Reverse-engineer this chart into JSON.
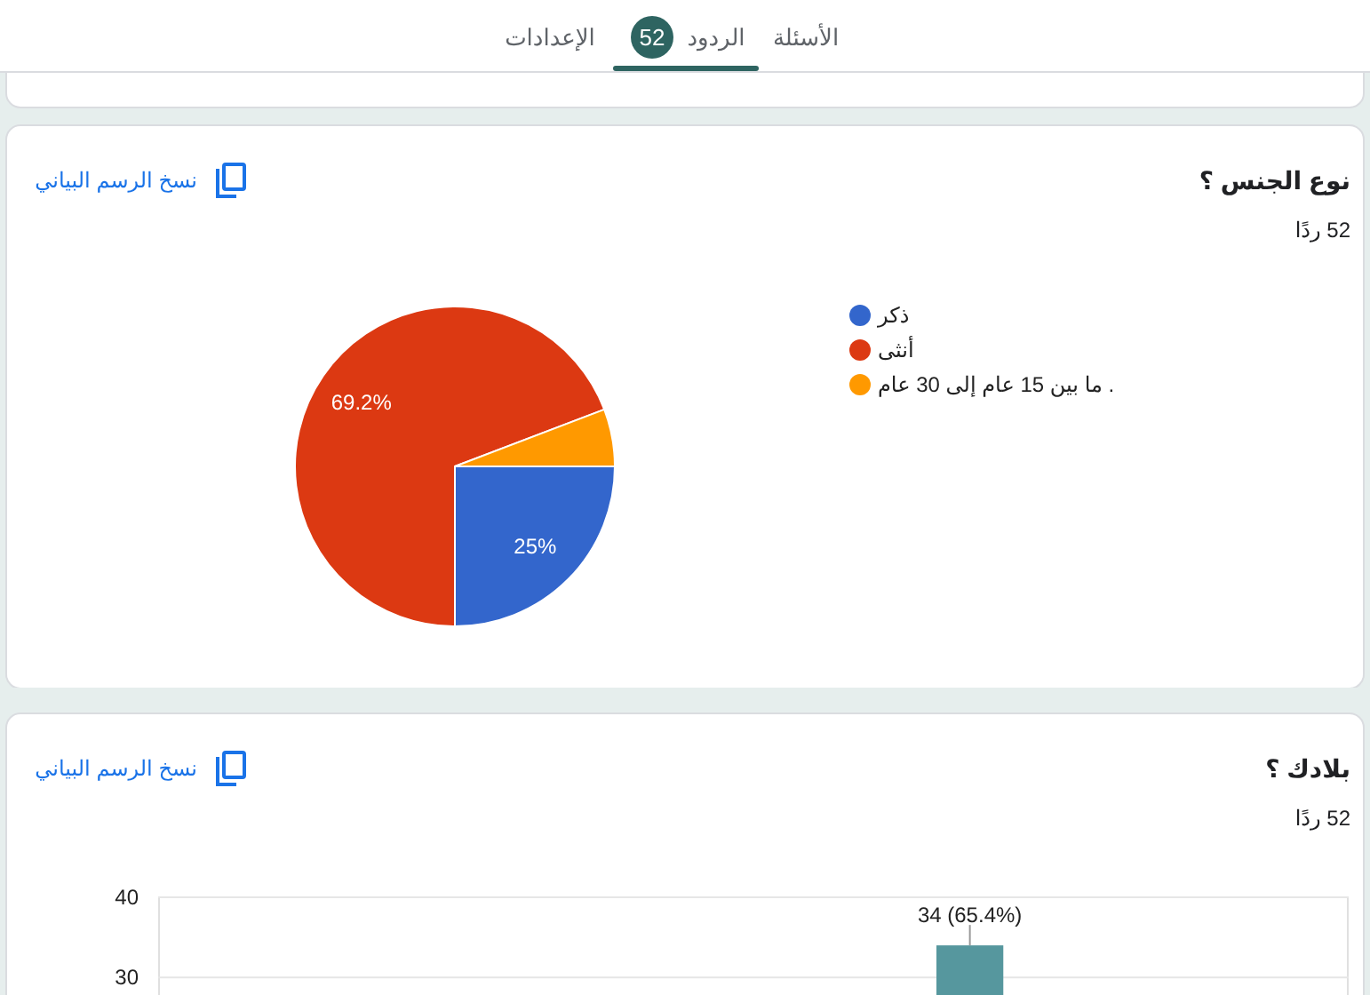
{
  "chart_data": [
    {
      "type": "other",
      "annotations": [
        "الأسئلة",
        "الردود",
        "52",
        "الإعدادات"
      ]
    },
    {
      "type": "pie",
      "title": "نوع الجنس ؟",
      "subtitle": "52 ردًا",
      "annotations": [
        "نسخ الرسم البياني"
      ],
      "categories": [
        "ذكر",
        "أنثى",
        "ما بين 15 عام إلى 30 عام ."
      ],
      "values": [
        25,
        69.2,
        5.8
      ],
      "colors": [
        "#3366cc",
        "#dc3912",
        "#ff9900"
      ],
      "value_labels": [
        "25%",
        "69.2%",
        null
      ],
      "legend": "right"
    },
    {
      "type": "bar",
      "title": "بلادك ؟",
      "subtitle": "52 ردًا",
      "annotations": [
        "نسخ الرسم البياني"
      ],
      "categories": [
        null,
        null,
        null,
        null,
        null,
        null,
        null,
        null,
        null,
        null,
        null
      ],
      "values": [
        null,
        null,
        null,
        null,
        null,
        null,
        null,
        34,
        null,
        null,
        null
      ],
      "value_labels": [
        null,
        null,
        null,
        null,
        null,
        null,
        null,
        "34 (65.4%)",
        null,
        null,
        null
      ],
      "color": "#56979e",
      "ylim": [
        27.7,
        40
      ],
      "yticks": [
        30,
        40
      ],
      "grid": "y"
    }
  ]
}
